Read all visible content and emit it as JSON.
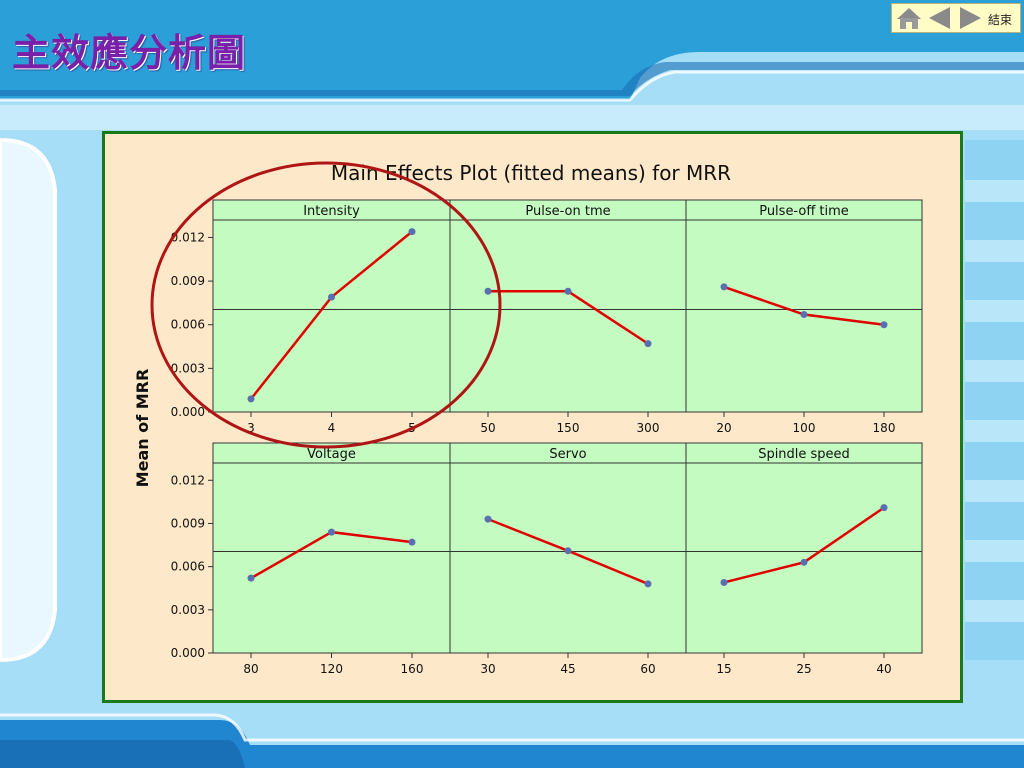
{
  "slide": {
    "title": "主效應分析圖",
    "nav": {
      "home_icon": "home-icon",
      "prev_icon": "triangle-left-icon",
      "next_icon": "triangle-right-icon",
      "end_label": "結束"
    },
    "colors": {
      "title": "#7a1fa8",
      "frame_border": "#1a7a1a",
      "plot_bg": "#fde9c9",
      "panel_bg": "#c4fbc0",
      "line": "#e00000",
      "marker": "#5a6fb0",
      "annotation_circle": "#b01515"
    }
  },
  "chart_data": {
    "type": "line",
    "title": "Main Effects Plot (fitted means) for MRR",
    "ylabel": "Mean of MRR",
    "ylim": [
      0.0,
      0.0132
    ],
    "yticks": [
      "0.000",
      "0.003",
      "0.006",
      "0.009",
      "0.012"
    ],
    "reference_line": 0.00705,
    "grid": false,
    "annotation": "red ellipse around Intensity panel",
    "panels": [
      {
        "name": "Intensity",
        "x": [
          "3",
          "4",
          "5"
        ],
        "values": [
          0.0009,
          0.0079,
          0.0124
        ]
      },
      {
        "name": "Pulse-on tme",
        "x": [
          "50",
          "150",
          "300"
        ],
        "values": [
          0.0083,
          0.0083,
          0.0047
        ]
      },
      {
        "name": "Pulse-off time",
        "x": [
          "20",
          "100",
          "180"
        ],
        "values": [
          0.0086,
          0.0067,
          0.006
        ]
      },
      {
        "name": "Voltage",
        "x": [
          "80",
          "120",
          "160"
        ],
        "values": [
          0.0052,
          0.0084,
          0.0077
        ]
      },
      {
        "name": "Servo",
        "x": [
          "30",
          "45",
          "60"
        ],
        "values": [
          0.0093,
          0.0071,
          0.0048
        ]
      },
      {
        "name": "Spindle speed",
        "x": [
          "15",
          "25",
          "40"
        ],
        "values": [
          0.0049,
          0.0063,
          0.0101
        ]
      }
    ]
  }
}
